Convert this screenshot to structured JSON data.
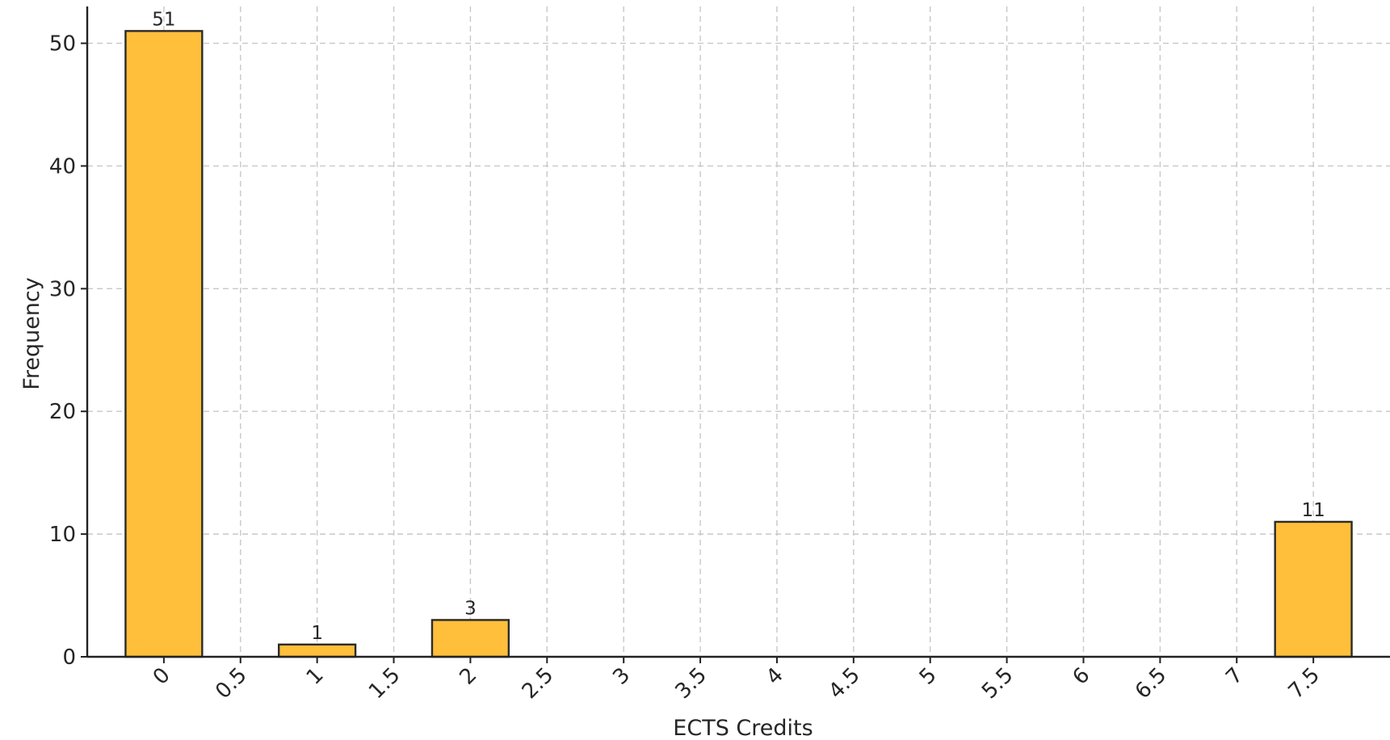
{
  "chart_data": {
    "type": "bar",
    "x": [
      0,
      1,
      2,
      7.5
    ],
    "values": [
      51,
      1,
      3,
      11
    ],
    "data_labels": [
      "51",
      "1",
      "3",
      "11"
    ],
    "x_tick_labels": [
      "0",
      "0.5",
      "1",
      "1.5",
      "2",
      "2.5",
      "3",
      "3.5",
      "4",
      "4.5",
      "5",
      "5.5",
      "6",
      "6.5",
      "7",
      "7.5"
    ],
    "x_ticks": [
      0,
      0.5,
      1,
      1.5,
      2,
      2.5,
      3,
      3.5,
      4,
      4.5,
      5,
      5.5,
      6,
      6.5,
      7,
      7.5
    ],
    "y_tick_labels": [
      "0",
      "10",
      "20",
      "30",
      "40",
      "50"
    ],
    "y_ticks": [
      0,
      10,
      20,
      30,
      40,
      50
    ],
    "bar_width": 0.5,
    "xlabel": "ECTS Credits",
    "ylabel": "Frequency",
    "xlim": [
      -0.5,
      8
    ],
    "ylim": [
      0,
      53
    ],
    "grid": true,
    "colors": {
      "bar_fill": "#FFBF3B",
      "bar_edge": "#2A2A2A",
      "grid": "#C8C8C8",
      "axis": "#222222"
    }
  }
}
